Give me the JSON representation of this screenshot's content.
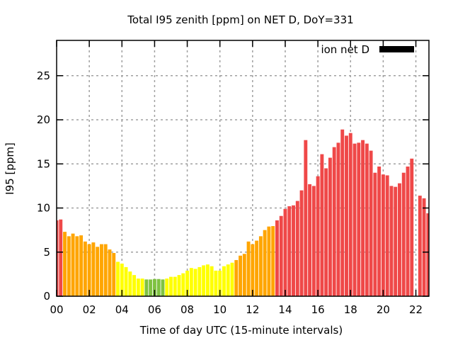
{
  "chart_data": {
    "type": "bar",
    "title": "Total I95 zenith [ppm] on NET D, DoY=331",
    "xlabel": "Time of day UTC (15-minute intervals)",
    "ylabel": "I95 [ppm]",
    "xlim": [
      0,
      22.8
    ],
    "ylim": [
      0,
      29
    ],
    "grid": true,
    "legend": {
      "label": "ion net D",
      "placement": "top-right",
      "color": "#000000"
    },
    "x_ticks": [
      0,
      2,
      4,
      6,
      8,
      10,
      12,
      14,
      16,
      18,
      20,
      22
    ],
    "x_tick_labels": [
      "00",
      "02",
      "04",
      "06",
      "08",
      "10",
      "12",
      "14",
      "16",
      "18",
      "20",
      "22"
    ],
    "y_ticks": [
      0,
      5,
      10,
      15,
      20,
      25
    ],
    "y_tick_labels": [
      "0",
      "5",
      "10",
      "15",
      "20",
      "25"
    ],
    "interval_hours": 0.25,
    "values": [
      8.6,
      8.7,
      7.3,
      6.8,
      7.1,
      6.8,
      6.9,
      6.2,
      5.9,
      6.1,
      5.6,
      5.9,
      5.9,
      5.3,
      4.9,
      3.9,
      3.7,
      3.3,
      2.8,
      2.4,
      2.0,
      2.0,
      1.9,
      1.9,
      1.95,
      1.95,
      1.9,
      2.0,
      2.2,
      2.2,
      2.4,
      2.6,
      2.9,
      3.2,
      3.1,
      3.3,
      3.5,
      3.6,
      3.4,
      2.9,
      2.9,
      3.4,
      3.6,
      3.8,
      4.1,
      4.6,
      4.8,
      6.2,
      5.9,
      6.3,
      6.8,
      7.5,
      7.9,
      7.95,
      8.6,
      9.1,
      9.9,
      10.2,
      10.3,
      10.8,
      12.0,
      17.7,
      12.7,
      12.5,
      13.6,
      16.1,
      14.5,
      15.7,
      16.9,
      17.4,
      18.9,
      18.2,
      18.5,
      17.3,
      17.4,
      17.7,
      17.3,
      16.5,
      14.0,
      14.7,
      13.8,
      13.7,
      12.5,
      12.4,
      12.8,
      14.0,
      14.7,
      15.6,
      null,
      11.4,
      11.1,
      9.4
    ],
    "color_scale": [
      {
        "below": 2,
        "color": "#7fc241"
      },
      {
        "below": 4,
        "color": "#ffff00"
      },
      {
        "below": 8,
        "color": "#ffa500"
      },
      {
        "below": 1000,
        "color": "#ef4848"
      }
    ]
  }
}
